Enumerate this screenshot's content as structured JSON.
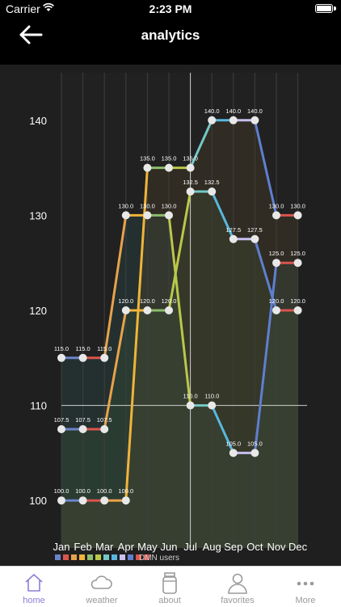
{
  "status_bar": {
    "carrier": "Carrier",
    "time": "2:23 PM"
  },
  "header": {
    "title": "analytics",
    "back_icon": "arrow-left-icon"
  },
  "chart_data": {
    "type": "line",
    "categories": [
      "Jan",
      "Feb",
      "Mar",
      "Apr",
      "May",
      "Jun",
      "Jul",
      "Aug",
      "Sep",
      "Oct",
      "Nov",
      "Dec"
    ],
    "y_ticks": [
      "100",
      "110",
      "120",
      "130",
      "140"
    ],
    "ylim": [
      95,
      145
    ],
    "xlabel": "",
    "ylabel": "",
    "legend": {
      "placement": "bottom",
      "entry": "DMN users"
    },
    "series": [
      {
        "values": [
          115,
          115,
          115,
          130,
          130,
          130,
          110,
          110,
          105,
          105,
          125,
          125
        ]
      },
      {
        "values": [
          107.5,
          107.5,
          107.5,
          120,
          120,
          120,
          132.5,
          132.5,
          127.5,
          127.5,
          120,
          120
        ]
      },
      {
        "values": [
          100,
          100,
          100,
          100,
          135,
          135,
          135,
          140,
          140,
          140,
          130,
          130
        ]
      }
    ],
    "point_labels": [
      [
        "115.0",
        "115.0",
        "115.0",
        "130.0",
        "130.0",
        "130.0",
        "110.0",
        "110.0",
        "105.0",
        "105.0",
        "125.0",
        "125.0"
      ],
      [
        "107.5",
        "107.5",
        "107.5",
        "120.0",
        "120.0",
        "120.0",
        "132.5",
        "132.5",
        "127.5",
        "127.5",
        "120.0",
        "120.0"
      ],
      [
        "100.0",
        "100.0",
        "100.0",
        "100.0",
        "135.0",
        "135.0",
        "135.0",
        "140.0",
        "140.0",
        "140.0",
        "130.0",
        "130.0"
      ]
    ],
    "segment_colors": [
      "#6b84c9",
      "#d9554e",
      "#e8a24a",
      "#f0b43a",
      "#8cbd6c",
      "#b9c84a",
      "#74c7c7",
      "#58b7de",
      "#c9bff0",
      "#5f7fd0",
      "#d9554e",
      "#d9554e"
    ],
    "fill_colors": [
      "#2f5a5a",
      "#3a5a3a",
      "#5a4a2a"
    ],
    "grid": true
  },
  "tab_bar": {
    "items": [
      {
        "label": "home",
        "icon": "house-icon"
      },
      {
        "label": "weather",
        "icon": "cloud-icon"
      },
      {
        "label": "about",
        "icon": "jar-icon"
      },
      {
        "label": "favorites",
        "icon": "person-icon"
      },
      {
        "label": "More",
        "icon": "ellipsis-icon"
      }
    ]
  }
}
